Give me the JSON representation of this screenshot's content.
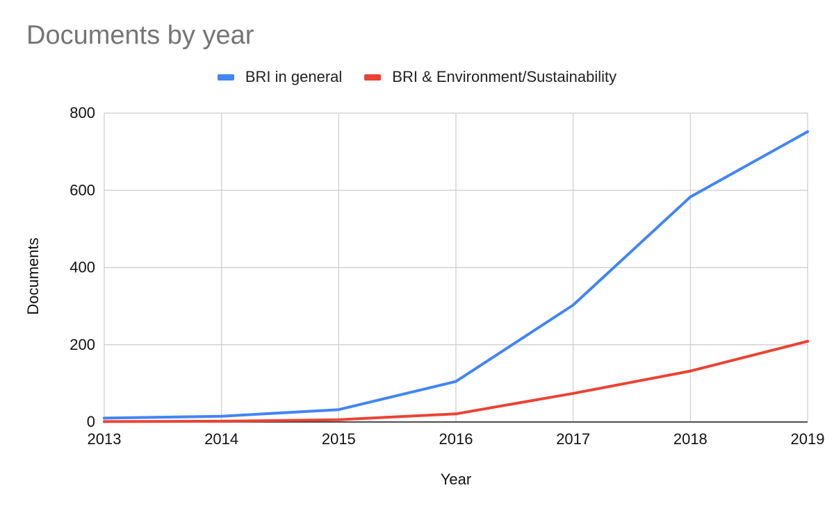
{
  "chart_data": {
    "type": "line",
    "title": "Documents by year",
    "xlabel": "Year",
    "ylabel": "Documents",
    "categories": [
      "2013",
      "2014",
      "2015",
      "2016",
      "2017",
      "2018",
      "2019"
    ],
    "ylim": [
      0,
      800
    ],
    "yticks": [
      0,
      200,
      400,
      600,
      800
    ],
    "grid": true,
    "legend_position": "top",
    "series": [
      {
        "name": "BRI in general",
        "color": "#4285F4",
        "values": [
          10,
          15,
          32,
          105,
          303,
          583,
          752
        ]
      },
      {
        "name": "BRI & Environment/Sustainability",
        "color": "#EA4335",
        "values": [
          1,
          2,
          6,
          21,
          74,
          132,
          209
        ]
      }
    ]
  }
}
